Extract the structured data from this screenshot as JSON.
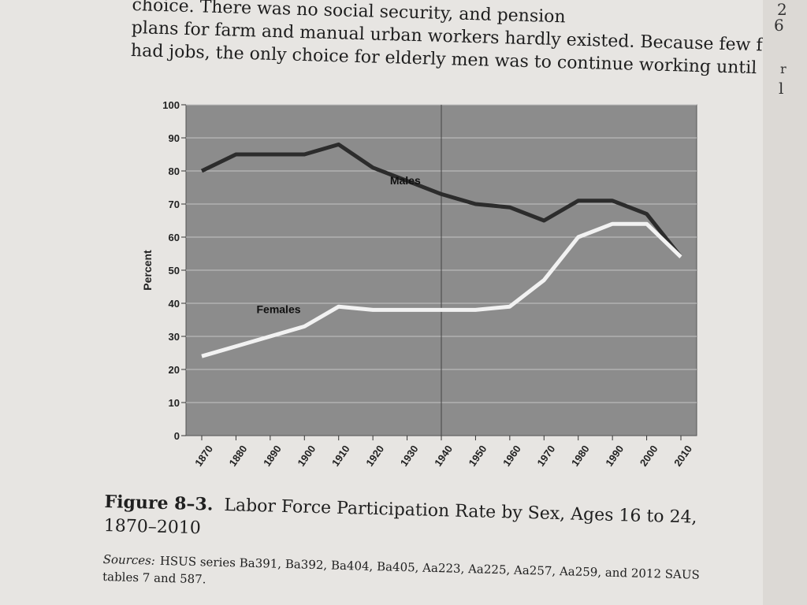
{
  "book_text": {
    "line1": "choice. There was no social security, and pension",
    "line2": "plans for farm and manual urban workers hardly existed. Because few females",
    "line3": "had jobs, the only choice for elderly men was to continue working until sickness,"
  },
  "right_page": {
    "fragments": [
      "2",
      "6",
      "r",
      "l"
    ]
  },
  "figure": {
    "label": "Figure 8–3.",
    "title_line1": "Labor Force Participation Rate by Sex, Ages 16 to 24,",
    "title_line2": "1870–2010",
    "sources_label": "Sources:",
    "sources_text": "HSUS series Ba391, Ba392, Ba404, Ba405, Aa223, Aa225, Aa257, Aa259, and 2012 SAUS tables 7 and 587."
  },
  "colors": {
    "plot_bg": "#8c8c8c",
    "gridline": "#c4c4c4",
    "males_line": "#2c2c2c",
    "females_line": "#f2f2f2"
  },
  "chart_data": {
    "type": "line",
    "title": "",
    "xlabel": "",
    "ylabel": "Percent",
    "ylim": [
      0,
      100
    ],
    "yticks": [
      0,
      10,
      20,
      30,
      40,
      50,
      60,
      70,
      80,
      90,
      100
    ],
    "xticks": [
      "1870",
      "1880",
      "1890",
      "1900",
      "1910",
      "1920",
      "1930",
      "1940",
      "1950",
      "1960",
      "1970",
      "1980",
      "1990",
      "2000",
      "2010"
    ],
    "grid": true,
    "series": [
      {
        "name": "Males",
        "x": [
          1870,
          1880,
          1890,
          1900,
          1910,
          1920,
          1930,
          1940,
          1950,
          1960,
          1970,
          1980,
          1990,
          2000,
          2010
        ],
        "values": [
          80,
          85,
          85,
          85,
          88,
          81,
          77,
          73,
          70,
          69,
          65,
          71,
          71,
          67,
          54
        ]
      },
      {
        "name": "Females",
        "x": [
          1870,
          1880,
          1890,
          1900,
          1910,
          1920,
          1930,
          1940,
          1950,
          1960,
          1970,
          1980,
          1990,
          2000,
          2010
        ],
        "values": [
          24,
          27,
          30,
          33,
          39,
          38,
          38,
          38,
          38,
          39,
          47,
          60,
          64,
          64,
          54
        ]
      }
    ]
  }
}
